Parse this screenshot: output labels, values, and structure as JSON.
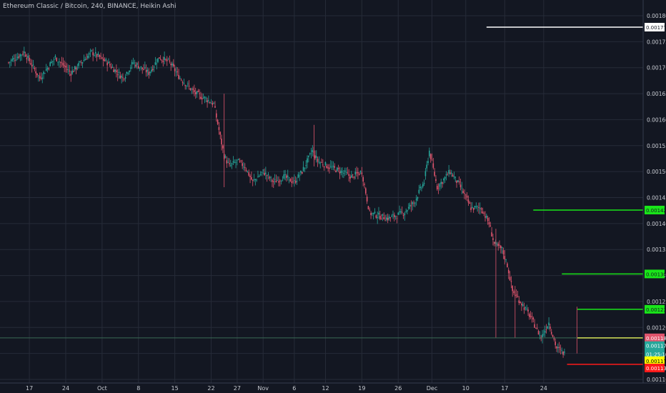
{
  "header": {
    "title": "Ethereum Classic / Bitcoin, 240, BINANCE, Heikin Ashi"
  },
  "colors": {
    "background": "#131722",
    "grid": "#262b38",
    "axis_text": "#c8cbd2",
    "up_candle": "#26a69a",
    "down_candle": "#e0556d",
    "white_line": "#ffffff",
    "green_line": "#19e619",
    "yellow_line": "#d4e157",
    "red_line": "#ff1a1a",
    "last_price_line": "#3a6b55"
  },
  "chart_data": {
    "type": "candlestick",
    "style": "Heikin Ashi",
    "symbol": "Ethereum Classic / Bitcoin",
    "interval": "240",
    "exchange": "BINANCE",
    "y_axis": {
      "side": "right",
      "ylim": [
        0.0011,
        0.00182
      ],
      "ticks": [
        "0.001100",
        "0.001150",
        "0.001200",
        "0.001250",
        "0.001300",
        "0.001350",
        "0.001400",
        "0.001450",
        "0.001500",
        "0.001550",
        "0.001600",
        "0.001650",
        "0.001700",
        "0.001750",
        "0.001800"
      ]
    },
    "x_axis": {
      "tick_labels": [
        "17",
        "24",
        "Oct",
        "8",
        "15",
        "22",
        "27",
        "Nov",
        "6",
        "12",
        "19",
        "26",
        "Dec",
        "10",
        "17",
        "24"
      ]
    },
    "grid": true,
    "price_path_days": [
      [
        0,
        0.00171
      ],
      [
        3,
        0.00173
      ],
      [
        6,
        0.00168
      ],
      [
        9,
        0.00172
      ],
      [
        12,
        0.00169
      ],
      [
        16,
        0.00173
      ],
      [
        19,
        0.00171
      ],
      [
        22,
        0.00168
      ],
      [
        24,
        0.00171
      ],
      [
        27,
        0.00169
      ],
      [
        29,
        0.00172
      ],
      [
        31,
        0.00171
      ],
      [
        33,
        0.00168
      ],
      [
        36,
        0.00165
      ],
      [
        38,
        0.00164
      ],
      [
        39.5,
        0.00163
      ],
      [
        41.5,
        0.00153
      ],
      [
        42.5,
        0.00151
      ],
      [
        44,
        0.00152
      ],
      [
        45.5,
        0.00151
      ],
      [
        47,
        0.00148
      ],
      [
        49,
        0.0015
      ],
      [
        51,
        0.00148
      ],
      [
        53,
        0.00149
      ],
      [
        55,
        0.00148
      ],
      [
        56.5,
        0.0015
      ],
      [
        58.5,
        0.00154
      ],
      [
        59.5,
        0.00152
      ],
      [
        61.5,
        0.00151
      ],
      [
        64,
        0.0015
      ],
      [
        66,
        0.00149
      ],
      [
        68,
        0.0015
      ],
      [
        69.5,
        0.00142
      ],
      [
        73,
        0.00141
      ],
      [
        76,
        0.00142
      ],
      [
        78,
        0.00144
      ],
      [
        80,
        0.00148
      ],
      [
        81,
        0.00154
      ],
      [
        82.5,
        0.00147
      ],
      [
        85,
        0.0015
      ],
      [
        87,
        0.00147
      ],
      [
        89,
        0.00143
      ],
      [
        91,
        0.00143
      ],
      [
        92.5,
        0.0014
      ],
      [
        93.5,
        0.00136
      ],
      [
        95,
        0.00135
      ],
      [
        96,
        0.00132
      ],
      [
        97,
        0.00127
      ],
      [
        98.5,
        0.00125
      ],
      [
        100.5,
        0.00122
      ],
      [
        102.5,
        0.00118
      ],
      [
        104,
        0.00121
      ],
      [
        105.5,
        0.00116
      ],
      [
        107,
        0.00115
      ]
    ],
    "horizontal_lines": [
      {
        "price": 0.001778,
        "label": "0.001778",
        "color": "#ffffff",
        "start_day": 92
      },
      {
        "price": 0.001426,
        "label": "0.001426",
        "color": "#19e619",
        "start_day": 101
      },
      {
        "price": 0.001303,
        "label": "0.001303",
        "color": "#19e619",
        "start_day": 106.5
      },
      {
        "price": 0.001235,
        "label": "0.001235",
        "color": "#19e619",
        "start_day": 109.5
      },
      {
        "price": 0.00118,
        "label": "0.001180",
        "color": "#d4e157",
        "start_day": 109.5
      },
      {
        "price": 0.001129,
        "label": "0.001129",
        "color": "#ff1a1a",
        "start_day": 107.5
      }
    ],
    "price_labels": [
      {
        "price": 0.00118,
        "label": "0.001180",
        "bg": "#e0556d",
        "fg": "#ffffff"
      },
      {
        "price": 0.001165,
        "label": "0.001179",
        "bg": "#26a69a",
        "fg": "#ffffff"
      },
      {
        "price": 0.001149,
        "label": "01:25:10",
        "bg": "#26a69a",
        "fg": "#ffffff"
      },
      {
        "price": 0.001136,
        "label": "0.001179",
        "bg": "#ffff00",
        "fg": "#000000"
      },
      {
        "price": 0.001122,
        "label": "0.001130",
        "bg": "#ff1a1a",
        "fg": "#ffffff"
      }
    ],
    "last_price": 0.00118
  }
}
